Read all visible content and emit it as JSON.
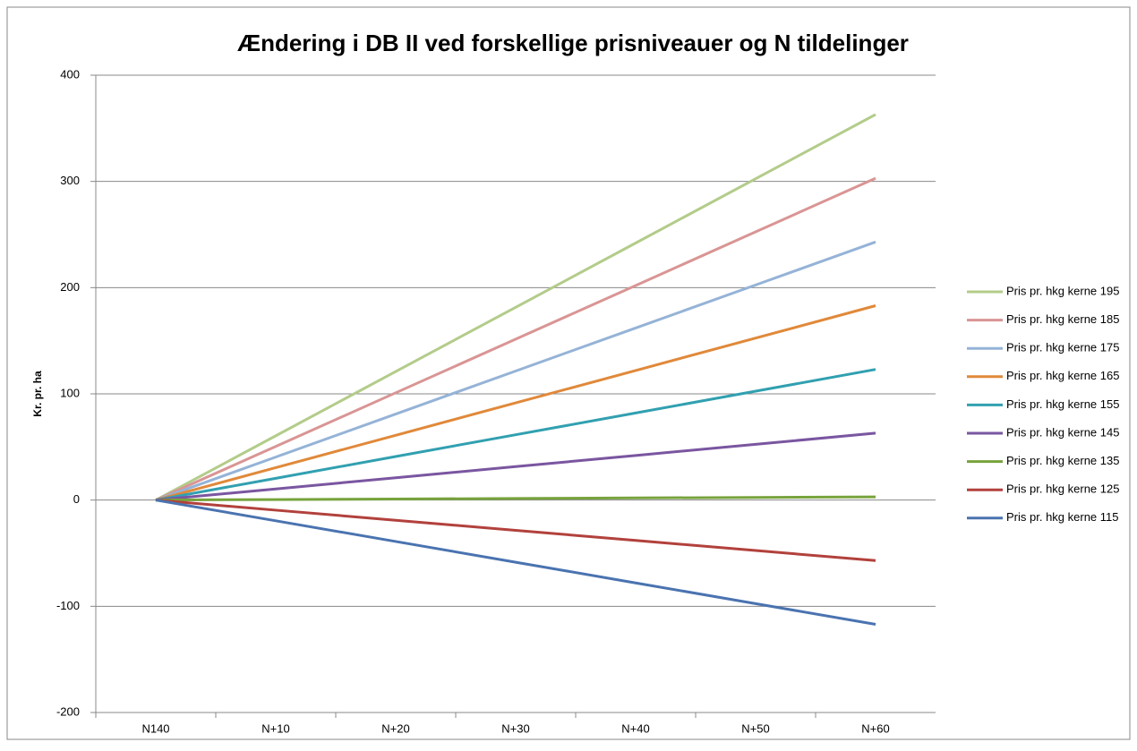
{
  "chart_data": {
    "type": "line",
    "title": "Ændering i DB II ved forskellige prisniveauer og N tildelinger",
    "y_label": "Kr. pr. ha",
    "categories": [
      "N140",
      "N+10",
      "N+20",
      "N+30",
      "N+40",
      "N+50",
      "N+60"
    ],
    "ylim": [
      -200,
      400
    ],
    "yticks": [
      -200,
      -100,
      0,
      100,
      200,
      300,
      400
    ],
    "grid": true,
    "legend": "right",
    "series": [
      {
        "name": "Pris pr. hkg kerne 195",
        "color": "#b3cc8a",
        "values": [
          0,
          60.5,
          121,
          181.5,
          242,
          302.5,
          363
        ]
      },
      {
        "name": "Pris pr. hkg kerne 185",
        "color": "#d99594",
        "values": [
          0,
          50.5,
          101,
          151.5,
          202,
          252.5,
          303
        ]
      },
      {
        "name": "Pris pr. hkg kerne 175",
        "color": "#95b3d7",
        "values": [
          0,
          40.5,
          81,
          121.5,
          162,
          202.5,
          243
        ]
      },
      {
        "name": "Pris pr. hkg kerne 165",
        "color": "#e0893a",
        "values": [
          0,
          30.5,
          61,
          91.5,
          122,
          152.5,
          183
        ]
      },
      {
        "name": "Pris pr. hkg kerne 155",
        "color": "#31a0b0",
        "values": [
          0,
          20.5,
          41,
          61.5,
          82,
          102.5,
          123
        ]
      },
      {
        "name": "Pris pr. hkg kerne 145",
        "color": "#7a56a0",
        "values": [
          0,
          10.5,
          21,
          31.5,
          42,
          52.5,
          63
        ]
      },
      {
        "name": "Pris pr. hkg kerne 135",
        "color": "#77a33c",
        "values": [
          0,
          0.5,
          1,
          1.5,
          2,
          2.5,
          3
        ]
      },
      {
        "name": "Pris pr. hkg kerne 125",
        "color": "#b2413c",
        "values": [
          0,
          -9.5,
          -19,
          -28.5,
          -38,
          -47.5,
          -57
        ]
      },
      {
        "name": "Pris pr. hkg kerne 115",
        "color": "#4a73b0",
        "values": [
          0,
          -19.5,
          -39,
          -58.5,
          -78,
          -97.5,
          -117
        ]
      }
    ]
  }
}
